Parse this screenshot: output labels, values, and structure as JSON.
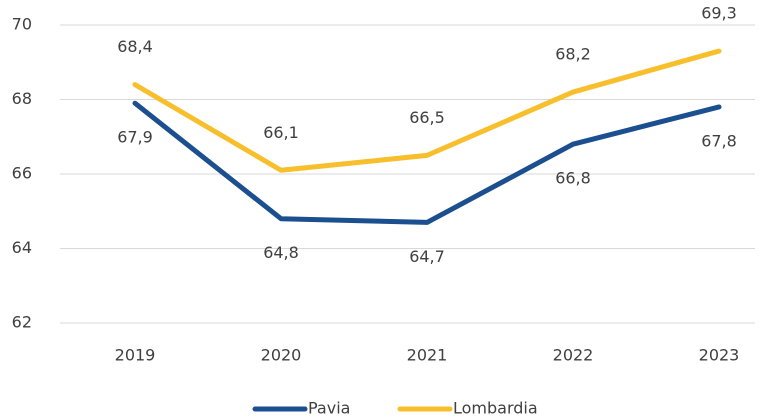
{
  "chart_data": {
    "type": "line",
    "categories": [
      "2019",
      "2020",
      "2021",
      "2022",
      "2023"
    ],
    "series": [
      {
        "name": "Pavia",
        "color": "#1b4f8f",
        "values": [
          67.9,
          64.8,
          64.7,
          66.8,
          67.8
        ],
        "value_labels": [
          "67,9",
          "64,8",
          "64,7",
          "66,8",
          "67,8"
        ]
      },
      {
        "name": "Lombardia",
        "color": "#f8bf2c",
        "values": [
          68.4,
          66.1,
          66.5,
          68.2,
          69.3
        ],
        "value_labels": [
          "68,4",
          "66,1",
          "66,5",
          "68,2",
          "69,3"
        ]
      }
    ],
    "ylim": [
      62,
      70
    ],
    "yticks": [
      62,
      64,
      66,
      68,
      70
    ],
    "grid": true
  }
}
